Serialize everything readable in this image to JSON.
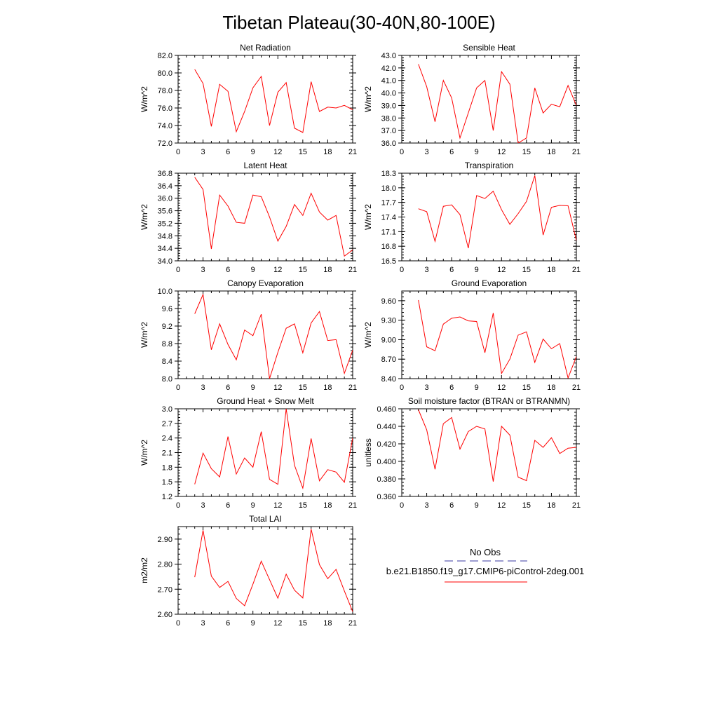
{
  "title": "Tibetan Plateau(30-40N,80-100E)",
  "legend": {
    "obs_label": "No Obs",
    "obs_color": "#3a3aa0",
    "model_label": "b.e21.B1850.f19_g17.CMIP6-piControl-2deg.001",
    "model_color": "#ff0000"
  },
  "chart_data": [
    {
      "type": "line",
      "title": "Net Radiation",
      "ylabel": "W/m^2",
      "xlim": [
        0,
        21
      ],
      "ylim": [
        72,
        82
      ],
      "xticks": [
        0,
        3,
        6,
        9,
        12,
        15,
        18,
        21
      ],
      "yticks": [
        "72.0",
        "74.0",
        "76.0",
        "78.0",
        "80.0",
        "82.0"
      ],
      "x": [
        2,
        3,
        4,
        5,
        6,
        7,
        8,
        9,
        10,
        11,
        12,
        13,
        14,
        15,
        16,
        17,
        18,
        19,
        20,
        21
      ],
      "values": [
        80.4,
        78.8,
        73.9,
        78.7,
        77.9,
        73.3,
        75.6,
        78.3,
        79.6,
        74.0,
        77.8,
        78.9,
        73.7,
        73.2,
        79.0,
        75.6,
        76.1,
        76.0,
        76.3,
        75.8
      ]
    },
    {
      "type": "line",
      "title": "Sensible Heat",
      "ylabel": "W/m^2",
      "xlim": [
        0,
        21
      ],
      "ylim": [
        36,
        43
      ],
      "xticks": [
        0,
        3,
        6,
        9,
        12,
        15,
        18,
        21
      ],
      "yticks": [
        "36.0",
        "37.0",
        "38.0",
        "39.0",
        "40.0",
        "41.0",
        "42.0",
        "43.0"
      ],
      "x": [
        2,
        3,
        4,
        5,
        6,
        7,
        8,
        9,
        10,
        11,
        12,
        13,
        14,
        15,
        16,
        17,
        18,
        19,
        20,
        21
      ],
      "values": [
        42.3,
        40.5,
        37.7,
        41.0,
        39.6,
        36.4,
        38.4,
        40.4,
        41.0,
        37.0,
        41.7,
        40.7,
        36.0,
        36.4,
        40.4,
        38.4,
        39.1,
        38.9,
        40.6,
        39.0
      ]
    },
    {
      "type": "line",
      "title": "Latent Heat",
      "ylabel": "W/m^2",
      "xlim": [
        0,
        21
      ],
      "ylim": [
        34.0,
        36.8
      ],
      "xticks": [
        0,
        3,
        6,
        9,
        12,
        15,
        18,
        21
      ],
      "yticks": [
        "34.0",
        "34.4",
        "34.8",
        "35.2",
        "35.6",
        "36.0",
        "36.4",
        "36.8"
      ],
      "x": [
        2,
        3,
        4,
        5,
        6,
        7,
        8,
        9,
        10,
        11,
        12,
        13,
        14,
        15,
        16,
        17,
        18,
        19,
        20,
        21
      ],
      "values": [
        36.67,
        36.28,
        34.38,
        36.1,
        35.75,
        35.23,
        35.2,
        36.1,
        36.05,
        35.4,
        34.63,
        35.1,
        35.8,
        35.45,
        36.16,
        35.56,
        35.3,
        35.45,
        34.15,
        34.35
      ]
    },
    {
      "type": "line",
      "title": "Transpiration",
      "ylabel": "W/m^2",
      "xlim": [
        0,
        21
      ],
      "ylim": [
        16.5,
        18.3
      ],
      "xticks": [
        0,
        3,
        6,
        9,
        12,
        15,
        18,
        21
      ],
      "yticks": [
        "16.5",
        "16.8",
        "17.1",
        "17.4",
        "17.7",
        "18.0",
        "18.3"
      ],
      "x": [
        2,
        3,
        4,
        5,
        6,
        7,
        8,
        9,
        10,
        11,
        12,
        13,
        14,
        15,
        16,
        17,
        18,
        19,
        20,
        21
      ],
      "values": [
        17.57,
        17.51,
        16.9,
        17.62,
        17.65,
        17.45,
        16.76,
        17.84,
        17.78,
        17.93,
        17.55,
        17.25,
        17.47,
        17.72,
        18.25,
        17.03,
        17.6,
        17.64,
        17.63,
        16.92
      ]
    },
    {
      "type": "line",
      "title": "Canopy Evaporation",
      "ylabel": "W/m^2",
      "xlim": [
        0,
        21
      ],
      "ylim": [
        8.0,
        10.0
      ],
      "xticks": [
        0,
        3,
        6,
        9,
        12,
        15,
        18,
        21
      ],
      "yticks": [
        "8.0",
        "8.4",
        "8.8",
        "9.2",
        "9.6",
        "10.0"
      ],
      "x": [
        2,
        3,
        4,
        5,
        6,
        7,
        8,
        9,
        10,
        11,
        12,
        13,
        14,
        15,
        16,
        17,
        18,
        19,
        20,
        21
      ],
      "values": [
        9.48,
        9.92,
        8.66,
        9.25,
        8.78,
        8.43,
        9.11,
        8.98,
        9.47,
        8.0,
        8.6,
        9.15,
        9.25,
        8.59,
        9.27,
        9.53,
        8.87,
        8.89,
        8.12,
        8.65
      ]
    },
    {
      "type": "line",
      "title": "Ground Evaporation",
      "ylabel": "W/m^2",
      "xlim": [
        0,
        21
      ],
      "ylim": [
        8.4,
        9.75
      ],
      "xticks": [
        0,
        3,
        6,
        9,
        12,
        15,
        18,
        21
      ],
      "yticks": [
        "8.40",
        "8.70",
        "9.00",
        "9.30",
        "9.60"
      ],
      "x": [
        2,
        3,
        4,
        5,
        6,
        7,
        8,
        9,
        10,
        11,
        12,
        13,
        14,
        15,
        16,
        17,
        18,
        19,
        20,
        21
      ],
      "values": [
        9.61,
        8.89,
        8.83,
        9.24,
        9.33,
        9.35,
        9.29,
        9.28,
        8.8,
        9.41,
        8.48,
        8.7,
        9.07,
        9.12,
        8.65,
        9.01,
        8.86,
        8.94,
        8.41,
        8.74
      ]
    },
    {
      "type": "line",
      "title": "Ground Heat + Snow Melt",
      "ylabel": "W/m^2",
      "xlim": [
        0,
        21
      ],
      "ylim": [
        1.2,
        3.0
      ],
      "xticks": [
        0,
        3,
        6,
        9,
        12,
        15,
        18,
        21
      ],
      "yticks": [
        "1.2",
        "1.5",
        "1.8",
        "2.1",
        "2.4",
        "2.7",
        "3.0"
      ],
      "x": [
        2,
        3,
        4,
        5,
        6,
        7,
        8,
        9,
        10,
        11,
        12,
        13,
        14,
        15,
        16,
        17,
        18,
        19,
        20,
        21
      ],
      "values": [
        1.45,
        2.09,
        1.77,
        1.6,
        2.43,
        1.66,
        1.99,
        1.8,
        2.53,
        1.55,
        1.45,
        3.0,
        1.84,
        1.37,
        2.39,
        1.52,
        1.75,
        1.7,
        1.49,
        2.4
      ]
    },
    {
      "type": "line",
      "title": "Soil moisture factor (BTRAN or BTRANMN)",
      "ylabel": "unitless",
      "xlim": [
        0,
        21
      ],
      "ylim": [
        0.36,
        0.46
      ],
      "xticks": [
        0,
        3,
        6,
        9,
        12,
        15,
        18,
        21
      ],
      "yticks": [
        "0.360",
        "0.380",
        "0.400",
        "0.420",
        "0.440",
        "0.460"
      ],
      "x": [
        2,
        3,
        4,
        5,
        6,
        7,
        8,
        9,
        10,
        11,
        12,
        13,
        14,
        15,
        16,
        17,
        18,
        19,
        20,
        21
      ],
      "values": [
        0.459,
        0.436,
        0.391,
        0.443,
        0.45,
        0.414,
        0.434,
        0.44,
        0.437,
        0.377,
        0.44,
        0.43,
        0.382,
        0.378,
        0.424,
        0.416,
        0.427,
        0.409,
        0.415,
        0.416
      ]
    },
    {
      "type": "line",
      "title": "Total LAI",
      "ylabel": "m2/m2",
      "xlim": [
        0,
        21
      ],
      "ylim": [
        2.6,
        2.95
      ],
      "xticks": [
        0,
        3,
        6,
        9,
        12,
        15,
        18,
        21
      ],
      "yticks": [
        "2.60",
        "2.70",
        "2.80",
        "2.90"
      ],
      "x": [
        2,
        3,
        4,
        5,
        6,
        7,
        8,
        9,
        10,
        11,
        12,
        13,
        14,
        15,
        16,
        17,
        18,
        19,
        20,
        21
      ],
      "values": [
        2.748,
        2.935,
        2.752,
        2.707,
        2.731,
        2.663,
        2.634,
        2.72,
        2.812,
        2.738,
        2.664,
        2.76,
        2.696,
        2.665,
        2.94,
        2.798,
        2.742,
        2.779,
        2.693,
        2.61
      ]
    }
  ]
}
